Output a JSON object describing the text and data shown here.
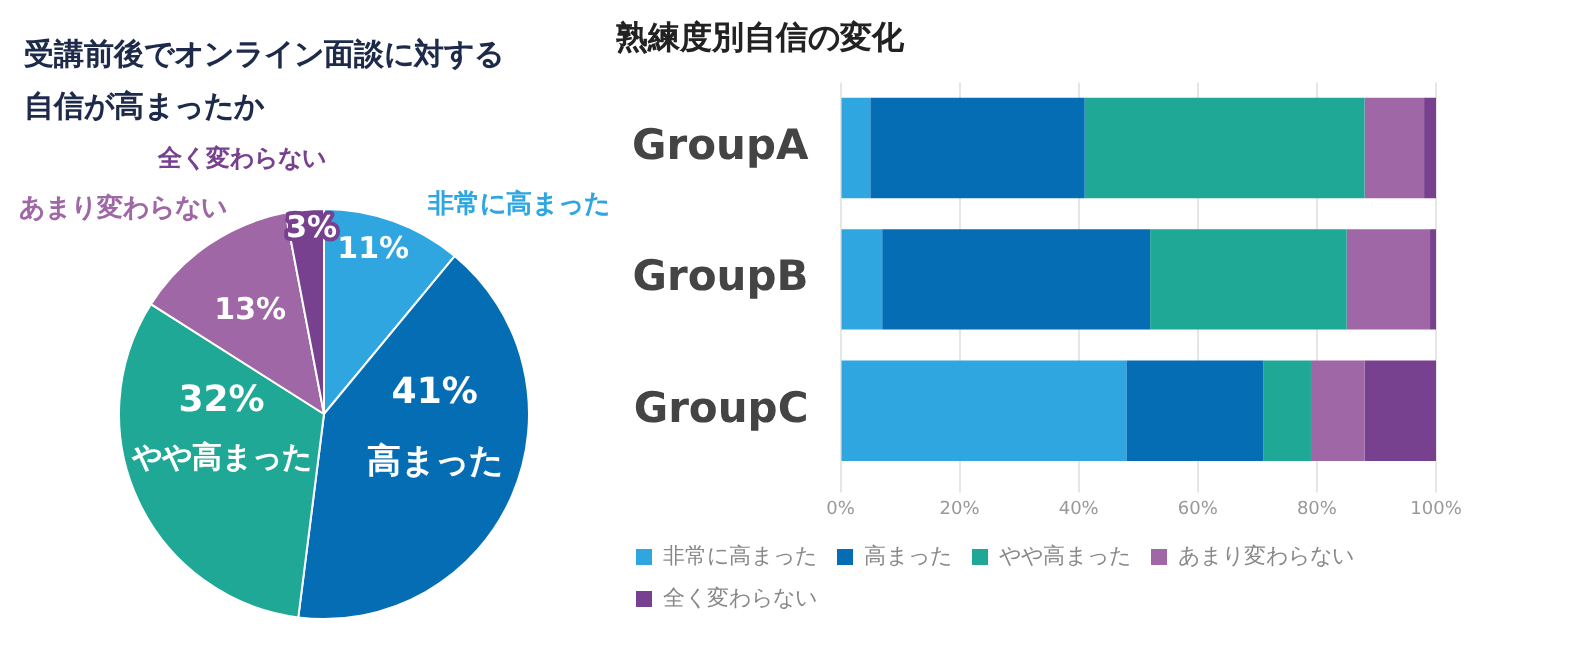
{
  "chart_data": [
    {
      "type": "pie",
      "title": "受講前後でオンライン面談に対する自信が高まったか",
      "categories": [
        "非常に高まった",
        "高まった",
        "やや高まった",
        "あまり変わらない",
        "全く変わらない"
      ],
      "values": [
        11,
        41,
        32,
        13,
        3
      ],
      "value_labels": [
        "11%",
        "41%",
        "32%",
        "13%",
        "3%"
      ],
      "colors": [
        "#2fa6e0",
        "#046db4",
        "#1fa895",
        "#9f67a6",
        "#77418f"
      ],
      "legend": false
    },
    {
      "type": "bar",
      "title": "熟練度別自信の変化",
      "orientation": "horizontal",
      "stacked": true,
      "categories": [
        "GroupA",
        "GroupB",
        "GroupC"
      ],
      "series": [
        {
          "name": "非常に高まった",
          "color": "#2fa6e0",
          "values": [
            5,
            7,
            48
          ]
        },
        {
          "name": "高まった",
          "color": "#046db4",
          "values": [
            36,
            45,
            23
          ]
        },
        {
          "name": "やや高まった",
          "color": "#1fa895",
          "values": [
            47,
            33,
            8
          ]
        },
        {
          "name": "あまり変わらない",
          "color": "#9f67a6",
          "values": [
            10,
            14,
            9
          ]
        },
        {
          "name": "全く変わらない",
          "color": "#77418f",
          "values": [
            2,
            1,
            12
          ]
        }
      ],
      "xlim": [
        0,
        100
      ],
      "xticks": [
        {
          "value": 0,
          "label": "0%"
        },
        {
          "value": 20,
          "label": "20%"
        },
        {
          "value": 40,
          "label": "40%"
        },
        {
          "value": 60,
          "label": "60%"
        },
        {
          "value": 80,
          "label": "80%"
        },
        {
          "value": 100,
          "label": "100%"
        }
      ],
      "grid": "x",
      "legend": "bottom"
    }
  ]
}
